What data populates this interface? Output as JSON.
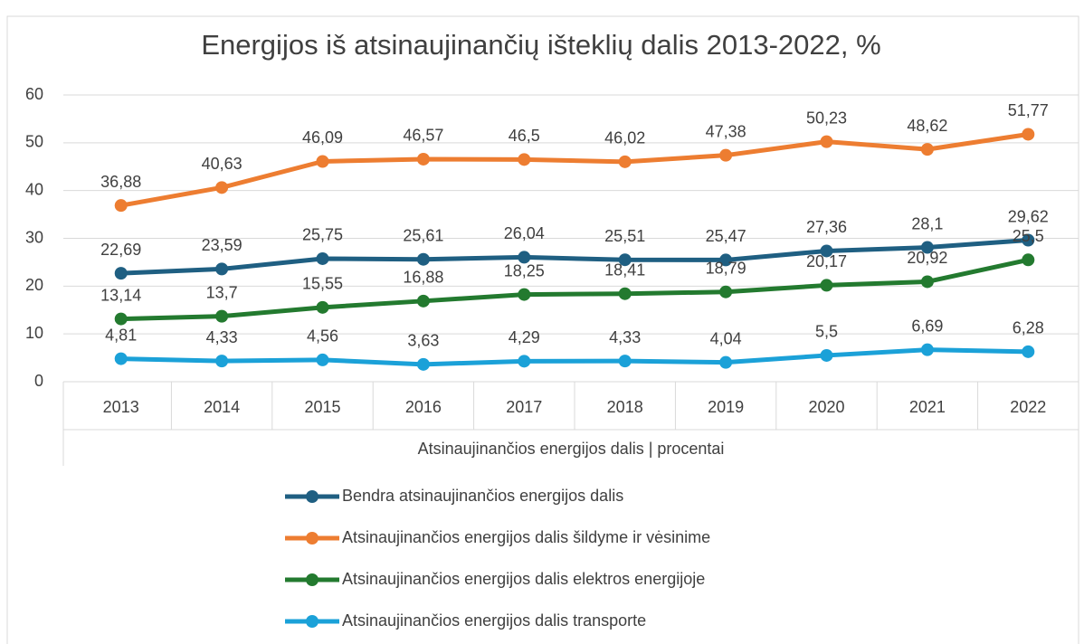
{
  "chart_data": {
    "type": "line",
    "title": "Energijos iš atsinaujinančių išteklių dalis 2013-2022, %",
    "x_axis_label": "Atsinaujinančios energijos dalis | procentai",
    "categories": [
      "2013",
      "2014",
      "2015",
      "2016",
      "2017",
      "2018",
      "2019",
      "2020",
      "2021",
      "2022"
    ],
    "ylim": [
      0,
      60
    ],
    "yticks": [
      0,
      10,
      20,
      30,
      40,
      50,
      60
    ],
    "grid": true,
    "legend": "bottom",
    "series": [
      {
        "name": "Bendra atsinaujinančios energijos dalis",
        "color": "#1f5f82",
        "values": [
          22.69,
          23.59,
          25.75,
          25.61,
          26.04,
          25.51,
          25.47,
          27.36,
          28.1,
          29.62
        ],
        "value_labels": [
          "22,69",
          "23,59",
          "25,75",
          "25,61",
          "26,04",
          "25,51",
          "25,47",
          "27,36",
          "28,1",
          "29,62"
        ]
      },
      {
        "name": "Atsinaujinančios energijos dalis šildyme ir vėsinime",
        "color": "#ed7d31",
        "values": [
          36.88,
          40.63,
          46.09,
          46.57,
          46.5,
          46.02,
          47.38,
          50.23,
          48.62,
          51.77
        ],
        "value_labels": [
          "36,88",
          "40,63",
          "46,09",
          "46,57",
          "46,5",
          "46,02",
          "47,38",
          "50,23",
          "48,62",
          "51,77"
        ]
      },
      {
        "name": "Atsinaujinančios energijos dalis elektros energijoje",
        "color": "#237a2f",
        "values": [
          13.14,
          13.7,
          15.55,
          16.88,
          18.25,
          18.41,
          18.79,
          20.17,
          20.92,
          25.5
        ],
        "value_labels": [
          "13,14",
          "13,7",
          "15,55",
          "16,88",
          "18,25",
          "18,41",
          "18,79",
          "20,17",
          "20,92",
          "25,5"
        ]
      },
      {
        "name": "Atsinaujinančios energijos dalis transporte",
        "color": "#1ba1d8",
        "values": [
          4.81,
          4.33,
          4.56,
          3.63,
          4.29,
          4.33,
          4.04,
          5.5,
          6.69,
          6.28
        ],
        "value_labels": [
          "4,81",
          "4,33",
          "4,56",
          "3,63",
          "4,29",
          "4,33",
          "4,04",
          "5,5",
          "6,69",
          "6,28"
        ]
      }
    ]
  }
}
